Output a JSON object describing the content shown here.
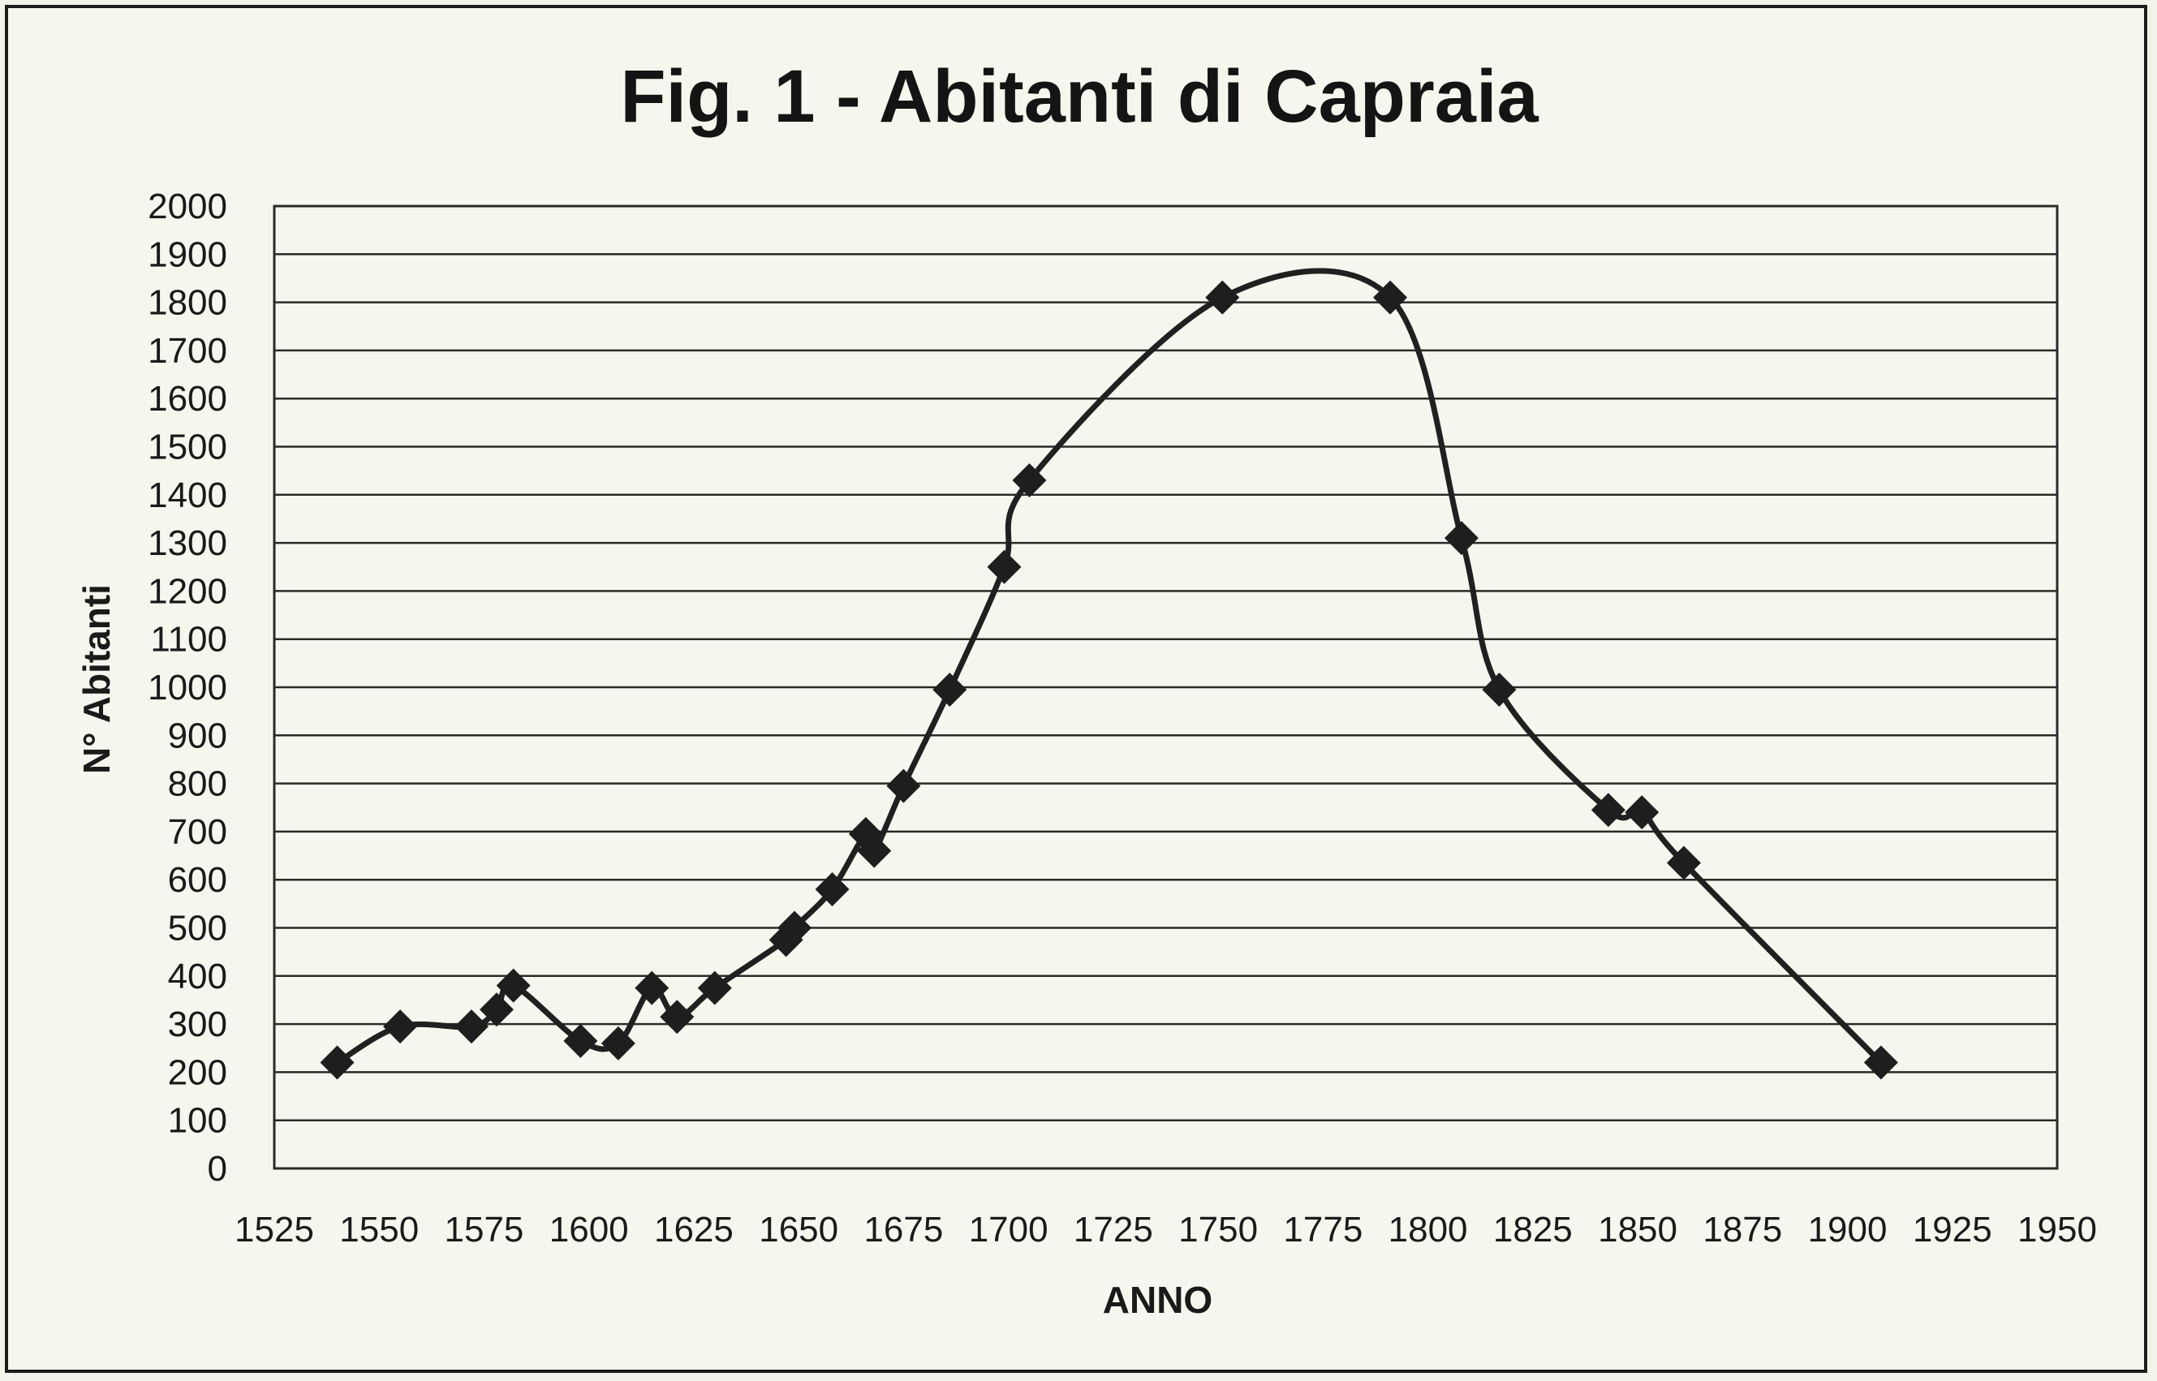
{
  "chart_data": {
    "type": "line",
    "title": "Fig. 1 - Abitanti di Capraia",
    "xlabel": "ANNO",
    "ylabel": "N° Abitanti",
    "xlim": [
      1525,
      1950
    ],
    "ylim": [
      0,
      2000
    ],
    "x_ticks": [
      1525,
      1550,
      1575,
      1600,
      1625,
      1650,
      1675,
      1700,
      1725,
      1750,
      1775,
      1800,
      1825,
      1850,
      1875,
      1900,
      1925,
      1950
    ],
    "y_ticks": [
      0,
      100,
      200,
      300,
      400,
      500,
      600,
      700,
      800,
      900,
      1000,
      1100,
      1200,
      1300,
      1400,
      1500,
      1600,
      1700,
      1800,
      1900,
      2000
    ],
    "grid": true,
    "line_color": "#202020",
    "series": [
      {
        "x": [
          1540,
          1555,
          1572,
          1578,
          1582,
          1598,
          1607,
          1615,
          1621,
          1630,
          1647,
          1649,
          1658,
          1666,
          1668,
          1675,
          1686,
          1699,
          1705,
          1751,
          1791,
          1808,
          1817,
          1843,
          1851,
          1861,
          1908
        ],
        "y": [
          220,
          295,
          295,
          330,
          380,
          265,
          260,
          375,
          315,
          375,
          475,
          500,
          580,
          695,
          660,
          795,
          995,
          1250,
          1430,
          1810,
          1810,
          1310,
          995,
          745,
          740,
          635,
          220
        ]
      }
    ]
  }
}
